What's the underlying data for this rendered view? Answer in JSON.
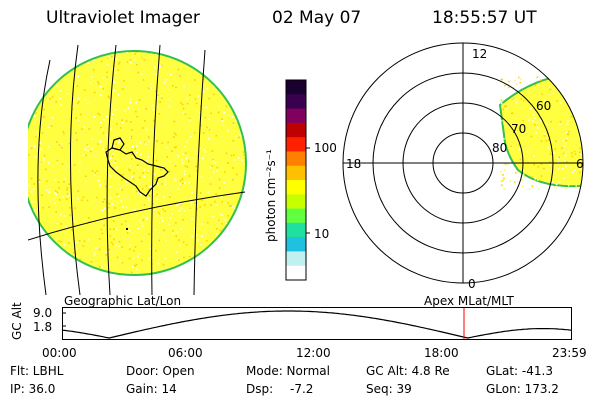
{
  "header": {
    "instrument": "Ultraviolet Imager",
    "date": "02 May 07",
    "time": "18:55:57 UT"
  },
  "colorbar": {
    "label": "photon cm⁻²s⁻¹",
    "ticks": [
      "100",
      "10"
    ],
    "colors": [
      "#1a0030",
      "#3a0050",
      "#800060",
      "#c00000",
      "#ff2000",
      "#ff8000",
      "#ffc000",
      "#ffff00",
      "#c8ff00",
      "#60ff40",
      "#20e0a0",
      "#20c0e0",
      "#c0f0f0",
      "#ffffff"
    ]
  },
  "left_panel": {
    "label": "Geographic Lat/Lon"
  },
  "right_panel": {
    "label": "Apex MLat/MLT",
    "mlt_labels": [
      "12",
      "18",
      "0",
      "6"
    ],
    "mlat_labels": [
      "60",
      "70",
      "80"
    ]
  },
  "altitude_plot": {
    "ylabel": "GC Alt",
    "yticks": [
      "9.0",
      "1.8"
    ],
    "xticks": [
      "00:00",
      "06:00",
      "12:00",
      "18:00",
      "23:59"
    ],
    "current_time_hours": 18.93
  },
  "info": {
    "flt": "Flt: LBHL",
    "ip": "IP: 36.0",
    "door": "Door: Open",
    "gain": "Gain: 14",
    "mode": "Mode: Normal",
    "dsp_label": "Dsp:",
    "dsp_value": "-7.2",
    "gcalt": "GC Alt: 4.8 Re",
    "seq": "Seq: 39",
    "glat": "GLat: -41.3",
    "glon": "GLon: 173.2"
  }
}
